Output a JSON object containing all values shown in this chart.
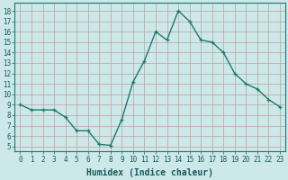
{
  "x": [
    0,
    1,
    2,
    3,
    4,
    5,
    6,
    7,
    8,
    9,
    10,
    11,
    12,
    13,
    14,
    15,
    16,
    17,
    18,
    19,
    20,
    21,
    22,
    23
  ],
  "y": [
    9,
    8.5,
    8.5,
    8.5,
    7.8,
    6.5,
    6.5,
    5.2,
    5.1,
    7.6,
    11.2,
    13.2,
    16.0,
    15.2,
    18.0,
    17.0,
    15.2,
    15.0,
    14.0,
    12.0,
    11.0,
    10.5,
    9.5,
    8.8
  ],
  "line_color": "#1a7a6e",
  "marker_color": "#1a7a6e",
  "bg_color": "#cce8e8",
  "grid_color": "#c0a0a0",
  "xlabel": "Humidex (Indice chaleur)",
  "ylabel_ticks": [
    5,
    6,
    7,
    8,
    9,
    10,
    11,
    12,
    13,
    14,
    15,
    16,
    17,
    18
  ],
  "ylim": [
    4.5,
    18.8
  ],
  "xlim": [
    -0.5,
    23.5
  ],
  "xticks": [
    0,
    1,
    2,
    3,
    4,
    5,
    6,
    7,
    8,
    9,
    10,
    11,
    12,
    13,
    14,
    15,
    16,
    17,
    18,
    19,
    20,
    21,
    22,
    23
  ],
  "tick_fontsize": 5.5,
  "label_fontsize": 7,
  "line_width": 1.0,
  "marker_size": 3.5
}
